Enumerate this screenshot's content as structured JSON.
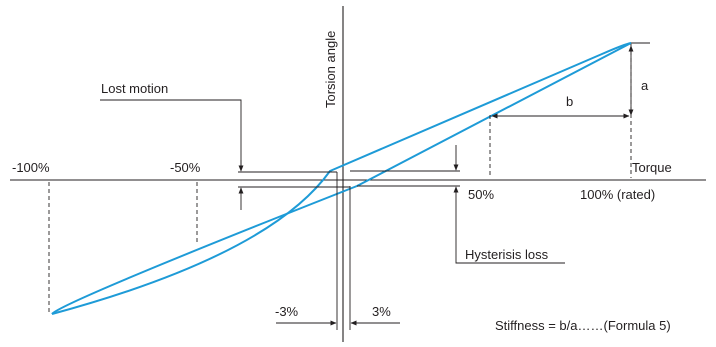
{
  "labels": {
    "y_axis": "Torsion angle",
    "x_axis": "Torque",
    "lost_motion": "Lost motion",
    "hysteresis_loss": "Hysterisis loss",
    "a": "a",
    "b": "b",
    "neg100": "-100%",
    "neg50": "-50%",
    "pos50": "50%",
    "pos100": "100% (rated)",
    "neg3": "-3%",
    "pos3": "3%",
    "formula": "Stiffness = b/a……(Formula 5)"
  },
  "colors": {
    "curve": "#1e9bd7",
    "lines": "#231f20"
  }
}
